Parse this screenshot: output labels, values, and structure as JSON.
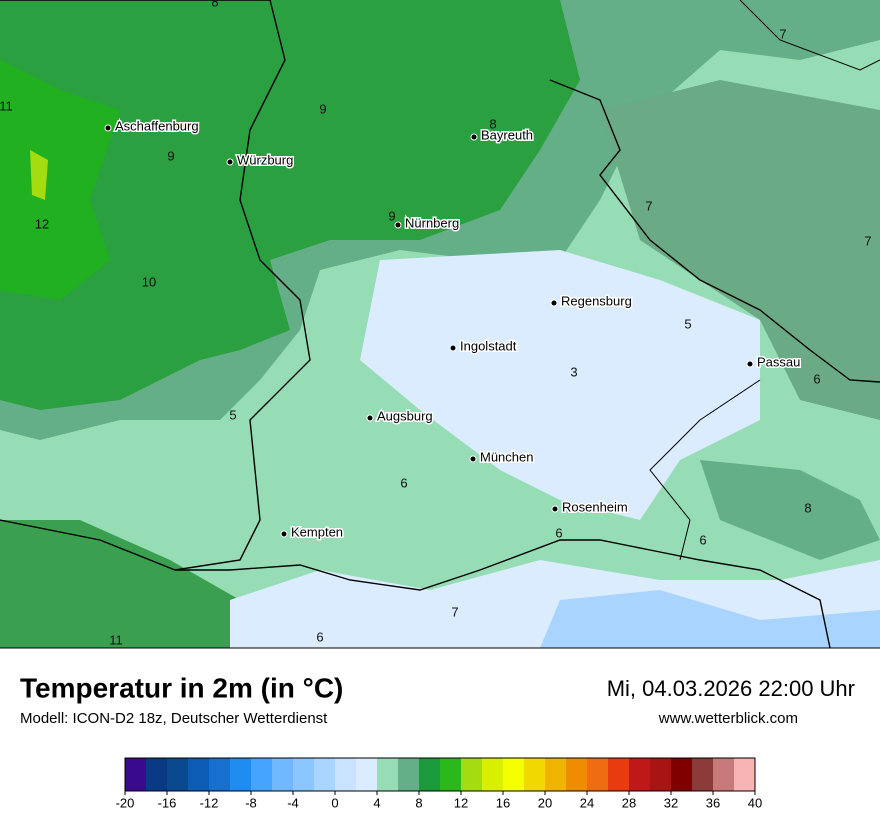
{
  "title": "Temperatur in 2m (in °C)",
  "subtitle": "Modell: ICON-D2 18z, Deutscher Wetterdienst",
  "datetime": "Mi, 04.03.2026 22:00 Uhr",
  "website": "www.wetterblick.com",
  "cities": [
    "Aschaffenburg",
    "Würzburg",
    "Bayreuth",
    "Nürnberg",
    "Regensburg",
    "Ingolstadt",
    "Passau",
    "Augsburg",
    "München",
    "Rosenheim",
    "Kempten"
  ],
  "map_labels": [
    8,
    11,
    9,
    8,
    9,
    12,
    9,
    7,
    7,
    7,
    10,
    5,
    3,
    6,
    5,
    6,
    6,
    8,
    6,
    7,
    6,
    11
  ],
  "colorbar": {
    "range": [
      -20,
      40
    ],
    "ticks": [
      -20,
      -16,
      -12,
      -8,
      -4,
      0,
      4,
      8,
      12,
      16,
      20,
      24,
      28,
      32,
      36,
      40
    ],
    "colors": [
      "#3a0a8c",
      "#0a3a84",
      "#0a4890",
      "#0a5cb4",
      "#1670d0",
      "#1e8cf0",
      "#44a4ff",
      "#70b8ff",
      "#8cc6ff",
      "#a8d4ff",
      "#c8e2ff",
      "#dcecff",
      "#96dcb4",
      "#64ae88",
      "#1a9a3a",
      "#2ab81a",
      "#a4dc10",
      "#d8f000",
      "#f4ff00",
      "#f0d800",
      "#f0b400",
      "#f08c00",
      "#f06c10",
      "#e83c10",
      "#c01818",
      "#a81414",
      "#800000",
      "#8c3a3a",
      "#c87a7a",
      "#f8b4b4"
    ]
  }
}
